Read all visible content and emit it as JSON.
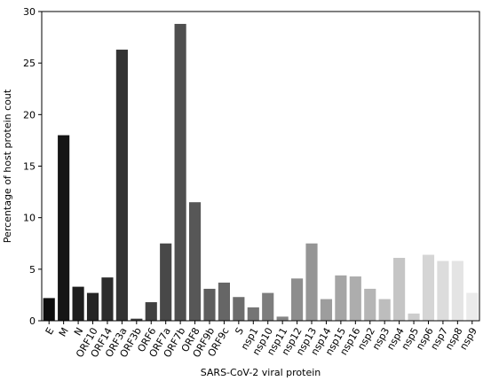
{
  "chart_data": {
    "type": "bar",
    "title": "",
    "xlabel": "SARS-CoV-2 viral protein",
    "ylabel": "Percentage of host protein cout",
    "ylim": [
      0,
      30
    ],
    "yticks": [
      0,
      5,
      10,
      15,
      20,
      25,
      30
    ],
    "grid": false,
    "categories": [
      "E",
      "M",
      "N",
      "ORF10",
      "ORF14",
      "ORF3a",
      "ORF3b",
      "ORF6",
      "ORF7a",
      "ORF7b",
      "ORF8",
      "ORF9b",
      "ORF9c",
      "S",
      "nsp1",
      "nsp10",
      "nsp11",
      "nsp12",
      "nsp13",
      "nsp14",
      "nsp15",
      "nsp16",
      "nsp2",
      "nsp3",
      "nsp4",
      "nsp5",
      "nsp6",
      "nsp7",
      "nsp8",
      "nsp9"
    ],
    "values": [
      2.2,
      18.0,
      3.3,
      2.7,
      4.2,
      26.3,
      0.2,
      1.8,
      7.5,
      28.8,
      11.5,
      3.1,
      3.7,
      2.3,
      1.3,
      2.7,
      0.4,
      4.1,
      7.5,
      2.1,
      4.4,
      4.3,
      3.1,
      2.1,
      6.1,
      0.7,
      6.4,
      5.8,
      5.8,
      2.7
    ],
    "colors": [
      "#0d0d0d",
      "#151515",
      "#1e1e1e",
      "#252525",
      "#2c2c2c",
      "#333333",
      "#3a3a3a",
      "#414141",
      "#484848",
      "#4f4f4f",
      "#575757",
      "#5e5e5e",
      "#666666",
      "#6d6d6d",
      "#757575",
      "#7d7d7d",
      "#858585",
      "#8d8d8d",
      "#959595",
      "#9d9d9d",
      "#a5a5a5",
      "#adadad",
      "#b5b5b5",
      "#bdbdbd",
      "#c5c5c5",
      "#cdcdcd",
      "#d5d5d5",
      "#dcdcdc",
      "#e4e4e4",
      "#ebebeb"
    ]
  }
}
